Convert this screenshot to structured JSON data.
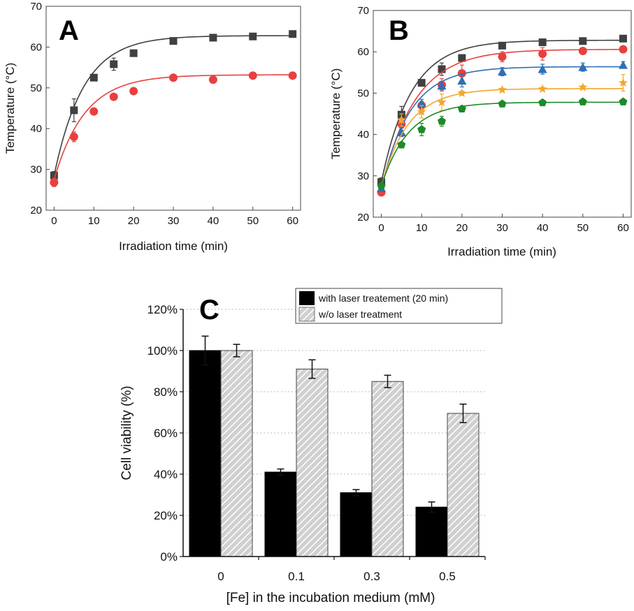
{
  "chart_data": [
    {
      "panel": "A",
      "type": "scatter",
      "xlabel": "Irradiation time (min)",
      "ylabel": "Temperature (°C)",
      "xlim": [
        -2,
        62
      ],
      "ylim": [
        20,
        70
      ],
      "xticks": [
        "0",
        "10",
        "20",
        "30",
        "40",
        "50",
        "60"
      ],
      "yticks": [
        "20",
        "30",
        "40",
        "50",
        "60",
        "70"
      ],
      "grid": false,
      "series": [
        {
          "color": "#404040",
          "marker": "square",
          "x": [
            0,
            5,
            10,
            15,
            20,
            30,
            40,
            50,
            60
          ],
          "y": [
            28.5,
            44.5,
            52.5,
            55.8,
            58.5,
            61.5,
            62.3,
            62.6,
            63.2
          ],
          "err": [
            1.0,
            2.8,
            0.6,
            1.5,
            0.5,
            0.4,
            0.3,
            0.3,
            0.3
          ],
          "fit": {
            "T0": 28.5,
            "Tmax": 62.8,
            "k": 0.135
          }
        },
        {
          "color": "#e8403f",
          "marker": "circle",
          "x": [
            0,
            5,
            10,
            15,
            20,
            30,
            40,
            50,
            60
          ],
          "y": [
            26.8,
            38.0,
            44.2,
            47.8,
            49.2,
            52.5,
            52.0,
            53.0,
            53.0
          ],
          "err": [
            1.0,
            1.2,
            0.4,
            0.3,
            0.3,
            0.3,
            0.3,
            0.3,
            0.3
          ],
          "fit": {
            "T0": 27.5,
            "Tmax": 53.2,
            "k": 0.13
          }
        }
      ]
    },
    {
      "panel": "B",
      "type": "scatter",
      "xlabel": "Irradiation time (min)",
      "ylabel": "Temperature (°C)",
      "xlim": [
        -2,
        62
      ],
      "ylim": [
        20,
        70
      ],
      "xticks": [
        "0",
        "10",
        "20",
        "30",
        "40",
        "50",
        "60"
      ],
      "yticks": [
        "20",
        "30",
        "40",
        "50",
        "60",
        "70"
      ],
      "grid": false,
      "series": [
        {
          "color": "#404040",
          "marker": "square",
          "x": [
            0,
            5,
            10,
            15,
            20,
            30,
            40,
            50,
            60
          ],
          "y": [
            28.5,
            44.8,
            52.5,
            55.8,
            58.5,
            61.5,
            62.3,
            62.6,
            63.2
          ],
          "err": [
            1.0,
            2.0,
            0.6,
            1.5,
            0.5,
            0.4,
            0.3,
            0.3,
            0.3
          ],
          "fit": {
            "T0": 28.5,
            "Tmax": 62.8,
            "k": 0.135
          }
        },
        {
          "color": "#e8403f",
          "marker": "circle",
          "x": [
            0,
            5,
            10,
            15,
            20,
            30,
            40,
            50,
            60
          ],
          "y": [
            26.0,
            42.5,
            47.0,
            52.0,
            54.8,
            58.8,
            59.5,
            60.2,
            60.6
          ],
          "err": [
            0.6,
            1.5,
            1.0,
            1.5,
            2.0,
            1.2,
            1.5,
            0.5,
            0.4
          ],
          "fit": {
            "T0": 27.0,
            "Tmax": 60.6,
            "k": 0.12
          }
        },
        {
          "color": "#2f6fb5",
          "marker": "triangle",
          "x": [
            0,
            5,
            10,
            15,
            20,
            30,
            40,
            50,
            60
          ],
          "y": [
            27.0,
            40.5,
            47.5,
            51.8,
            53.0,
            55.2,
            55.8,
            56.3,
            56.8
          ],
          "err": [
            0.6,
            1.0,
            1.0,
            1.0,
            1.5,
            1.0,
            1.2,
            1.0,
            0.8
          ],
          "fit": {
            "T0": 27.0,
            "Tmax": 56.4,
            "k": 0.14
          }
        },
        {
          "color": "#f0a830",
          "marker": "star",
          "x": [
            0,
            5,
            10,
            15,
            20,
            30,
            40,
            50,
            60
          ],
          "y": [
            27.5,
            43.5,
            45.5,
            47.8,
            50.0,
            50.8,
            51.0,
            51.4,
            52.5
          ],
          "err": [
            0.6,
            1.5,
            1.5,
            2.0,
            0.5,
            0.4,
            0.4,
            0.4,
            2.0
          ],
          "fit": {
            "T0": 27.5,
            "Tmax": 51.1,
            "k": 0.15
          }
        },
        {
          "color": "#1e8a2a",
          "marker": "pentagon",
          "x": [
            0,
            5,
            10,
            15,
            20,
            30,
            40,
            50,
            60
          ],
          "y": [
            27.5,
            37.5,
            41.2,
            43.2,
            46.2,
            47.4,
            47.7,
            47.9,
            47.9
          ],
          "err": [
            0.6,
            0.6,
            1.5,
            1.2,
            0.4,
            0.3,
            0.3,
            0.3,
            0.3
          ],
          "fit": {
            "T0": 27.5,
            "Tmax": 47.8,
            "k": 0.15
          }
        }
      ]
    },
    {
      "panel": "C",
      "type": "bar",
      "xlabel": "[Fe] in the incubation medium (mM)",
      "ylabel": "Cell viability (%)",
      "ylim": [
        0,
        120
      ],
      "yticks": [
        "0%",
        "20%",
        "40%",
        "60%",
        "80%",
        "100%",
        "120%"
      ],
      "grid": true,
      "categories": [
        "0",
        "0.1",
        "0.3",
        "0.5"
      ],
      "legend_position": "top-right",
      "series": [
        {
          "name": "with laser treatement (20 min)",
          "color": "#000000",
          "pattern": "solid",
          "values": [
            100,
            41,
            31,
            24
          ],
          "err": [
            7,
            1.5,
            1.5,
            2.5
          ]
        },
        {
          "name": "w/o laser treatment",
          "color": "#d0d0d0",
          "pattern": "hatched",
          "values": [
            100,
            91,
            85,
            69.5
          ],
          "err": [
            3,
            4.5,
            3,
            4.5
          ]
        }
      ]
    }
  ],
  "panels": {
    "a": "A",
    "b": "B",
    "c": "C"
  }
}
